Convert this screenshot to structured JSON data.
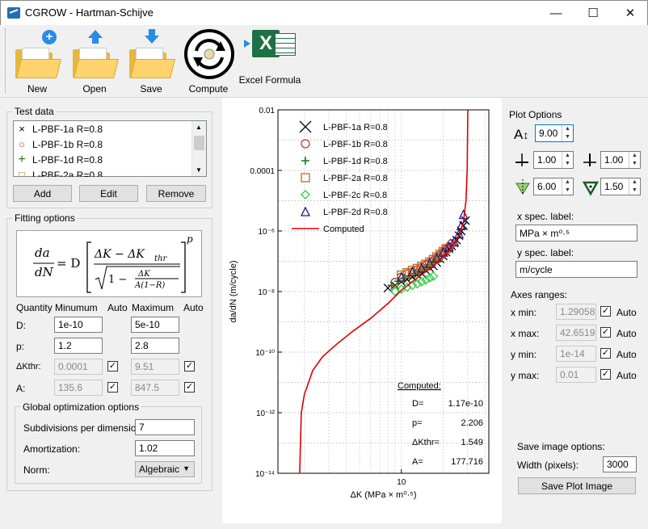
{
  "window": {
    "title": "CGROW - Hartman-Schijve",
    "minimize": "—",
    "maximize": "☐",
    "close": "✕"
  },
  "toolbar": {
    "new": "New",
    "open": "Open",
    "save": "Save",
    "compute": "Compute",
    "excel": "Excel Formula"
  },
  "test_data": {
    "title": "Test data",
    "items": [
      {
        "label": "L-PBF-1a R=0.8",
        "marker": "×",
        "color": "#000000"
      },
      {
        "label": "L-PBF-1b R=0.8",
        "marker": "○",
        "color": "#c0392b"
      },
      {
        "label": "L-PBF-1d R=0.8",
        "marker": "+",
        "color": "#1a7a1a"
      },
      {
        "label": "L-PBF-2a R=0.8",
        "marker": "□",
        "color": "#c06a1f"
      }
    ],
    "add": "Add",
    "edit": "Edit",
    "remove": "Remove"
  },
  "fitting": {
    "title": "Fitting options",
    "formula": {
      "da": "da",
      "dN": "dN",
      "eq": "= D",
      "num": "ΔK − ΔK",
      "thr": "thr",
      "sqrt1": "1 − ",
      "dk": "ΔK",
      "a1r": "A(1−R)",
      "p": "p"
    },
    "headers": {
      "quantity": "Quantity",
      "min": "Minumum",
      "auto1": "Auto",
      "max": "Maximum",
      "auto2": "Auto"
    },
    "rows": [
      {
        "label": "D:",
        "min": "1e-10",
        "max": "5e-10",
        "min_auto": false,
        "max_auto": false
      },
      {
        "label": "p:",
        "min": "1.2",
        "max": "2.8",
        "min_auto": false,
        "max_auto": false
      },
      {
        "label": "ΔKthr:",
        "min": "0.0001",
        "max": "9.51",
        "min_auto": true,
        "max_auto": true
      },
      {
        "label": "A:",
        "min": "135.6",
        "max": "847.5",
        "min_auto": true,
        "max_auto": true
      }
    ],
    "global": {
      "title": "Global optimization options",
      "subdiv_label": "Subdivisions per dimension:",
      "subdiv": "7",
      "amort_label": "Amortization:",
      "amort": "1.02",
      "norm_label": "Norm:",
      "norm": "Algebraic"
    }
  },
  "plot_options": {
    "title": "Plot Options",
    "font_size": "9.00",
    "x_line": "1.00",
    "y_line": "1.00",
    "marker_size": "6.00",
    "marker_width": "1.50",
    "x_label_title": "x spec. label:",
    "x_label": "MPa × m⁰·⁵",
    "y_label_title": "y spec. label:",
    "y_label": "m/cycle",
    "axes_title": "Axes ranges:",
    "ranges": [
      {
        "label": "x min:",
        "value": "1.29058",
        "auto": true
      },
      {
        "label": "x max:",
        "value": "42.6519",
        "auto": true
      },
      {
        "label": "y min:",
        "value": "1e-14",
        "auto": true
      },
      {
        "label": "y max:",
        "value": "0.01",
        "auto": true
      }
    ],
    "auto_label": "Auto",
    "save_title": "Save image options:",
    "width_label": "Width (pixels):",
    "width": "3000",
    "save_button": "Save Plot Image"
  },
  "chart_data": {
    "type": "scatter",
    "xlabel": "ΔK (MPa × m⁰·⁵)",
    "ylabel": "da/dN (m/cycle)",
    "xscale": "log",
    "yscale": "log",
    "xlim": [
      1.29058,
      42.6519
    ],
    "ylim": [
      1e-14,
      0.01
    ],
    "yticks": [
      {
        "v": 1e-14,
        "label": "10⁻¹⁴"
      },
      {
        "v": 1e-12,
        "label": "10⁻¹²"
      },
      {
        "v": 1e-10,
        "label": "10⁻¹⁰"
      },
      {
        "v": 1e-08,
        "label": "10⁻⁸"
      },
      {
        "v": 1e-06,
        "label": "10⁻⁶"
      },
      {
        "v": 0.0001,
        "label": "0.0001"
      },
      {
        "v": 0.01,
        "label": "0.01"
      }
    ],
    "xticks": [
      {
        "v": 10,
        "label": "10"
      }
    ],
    "grid": true,
    "legend_position": "top-left",
    "series": [
      {
        "name": "L-PBF-1a R=0.8",
        "marker": "x",
        "color": "#000000",
        "points": [
          [
            8,
            1.3e-08
          ],
          [
            9,
            1.6e-08
          ],
          [
            10,
            2.1e-08
          ],
          [
            11,
            2.5e-08
          ],
          [
            12,
            3e-08
          ],
          [
            13,
            3.6e-08
          ],
          [
            14,
            4e-08
          ],
          [
            15,
            5e-08
          ],
          [
            16,
            6e-08
          ],
          [
            17,
            7e-08
          ],
          [
            18,
            9e-08
          ],
          [
            19,
            1.2e-07
          ],
          [
            20,
            1.5e-07
          ],
          [
            21,
            2e-07
          ],
          [
            22,
            2.6e-07
          ],
          [
            23,
            3.2e-07
          ],
          [
            24,
            4e-07
          ],
          [
            25,
            5e-07
          ],
          [
            26,
            7e-07
          ],
          [
            27,
            1e-06
          ],
          [
            28,
            1.5e-06
          ],
          [
            29,
            2.2e-06
          ]
        ]
      },
      {
        "name": "L-PBF-1b R=0.8",
        "marker": "o",
        "color": "#c0392b",
        "points": [
          [
            9,
            2e-08
          ],
          [
            10,
            3e-08
          ],
          [
            11,
            3.8e-08
          ],
          [
            12,
            4.4e-08
          ],
          [
            13,
            5.2e-08
          ],
          [
            14,
            6.2e-08
          ],
          [
            15,
            7.5e-08
          ],
          [
            16,
            8.8e-08
          ],
          [
            17,
            1.05e-07
          ],
          [
            18,
            1.3e-07
          ],
          [
            19,
            1.6e-07
          ],
          [
            20,
            2e-07
          ],
          [
            21,
            2.5e-07
          ],
          [
            22,
            3e-07
          ],
          [
            23,
            3.8e-07
          ]
        ]
      },
      {
        "name": "L-PBF-1d R=0.8",
        "marker": "+",
        "color": "#1a7a1a",
        "points": [
          [
            8.5,
            1.6e-08
          ],
          [
            9.5,
            2.2e-08
          ],
          [
            10.5,
            2.8e-08
          ],
          [
            11.5,
            3.3e-08
          ],
          [
            12.5,
            3.9e-08
          ],
          [
            13.5,
            4.5e-08
          ],
          [
            14.5,
            5.4e-08
          ],
          [
            15.5,
            6.4e-08
          ],
          [
            16.5,
            7.6e-08
          ],
          [
            17.5,
            9.2e-08
          ],
          [
            18.5,
            1.1e-07
          ]
        ]
      },
      {
        "name": "L-PBF-2a R=0.8",
        "marker": "s",
        "color": "#c06a1f",
        "points": [
          [
            10,
            3.5e-08
          ],
          [
            11,
            4.2e-08
          ],
          [
            12,
            5e-08
          ],
          [
            13,
            5.8e-08
          ],
          [
            14,
            6.8e-08
          ],
          [
            15,
            8e-08
          ],
          [
            16,
            9.5e-08
          ],
          [
            17,
            1.15e-07
          ],
          [
            18,
            1.4e-07
          ],
          [
            19,
            1.7e-07
          ],
          [
            20,
            2.1e-07
          ],
          [
            21,
            2.6e-07
          ]
        ]
      },
      {
        "name": "L-PBF-2c R=0.8",
        "marker": "d",
        "color": "#2ecc40",
        "points": [
          [
            9,
            1e-08
          ],
          [
            10,
            1.2e-08
          ],
          [
            11,
            1.4e-08
          ],
          [
            12,
            1.6e-08
          ],
          [
            13,
            1.8e-08
          ],
          [
            14,
            2.1e-08
          ],
          [
            15,
            2.4e-08
          ],
          [
            16,
            2.8e-08
          ],
          [
            17,
            3.2e-08
          ]
        ]
      },
      {
        "name": "L-PBF-2d R=0.8",
        "marker": "^",
        "color": "#1a1a8a",
        "points": [
          [
            10,
            3e-08
          ],
          [
            12,
            4.5e-08
          ],
          [
            14,
            6e-08
          ],
          [
            16,
            8.5e-08
          ],
          [
            18,
            1.3e-07
          ],
          [
            20,
            2e-07
          ],
          [
            22,
            3e-07
          ],
          [
            24,
            4.5e-07
          ],
          [
            26,
            8e-07
          ],
          [
            27,
            1.5e-06
          ],
          [
            28,
            3.5e-06
          ]
        ]
      },
      {
        "name": "Computed",
        "marker": "line",
        "color": "#e00000",
        "points": [
          [
            1.85,
            1e-14
          ],
          [
            1.9,
            1e-12
          ],
          [
            2.0,
            4e-12
          ],
          [
            2.3,
            2.5e-11
          ],
          [
            2.7,
            7e-11
          ],
          [
            3.5,
            2e-10
          ],
          [
            4.5,
            5e-10
          ],
          [
            6,
            1.3e-09
          ],
          [
            8,
            4e-09
          ],
          [
            10,
            1.1e-08
          ],
          [
            13,
            2.8e-08
          ],
          [
            17,
            7e-08
          ],
          [
            22,
            2.2e-07
          ],
          [
            26,
            7e-07
          ],
          [
            28,
            2e-06
          ],
          [
            29.2,
            1e-05
          ],
          [
            29.8,
            0.0001
          ],
          [
            30.1,
            0.01
          ]
        ]
      }
    ],
    "computed": {
      "title": "Computed:",
      "rows": [
        {
          "label": "D=",
          "value": "1.17e-10"
        },
        {
          "label": "p=",
          "value": "2.206"
        },
        {
          "label": "ΔKthr=",
          "value": "1.549"
        },
        {
          "label": "A=",
          "value": "177.716"
        }
      ]
    }
  }
}
